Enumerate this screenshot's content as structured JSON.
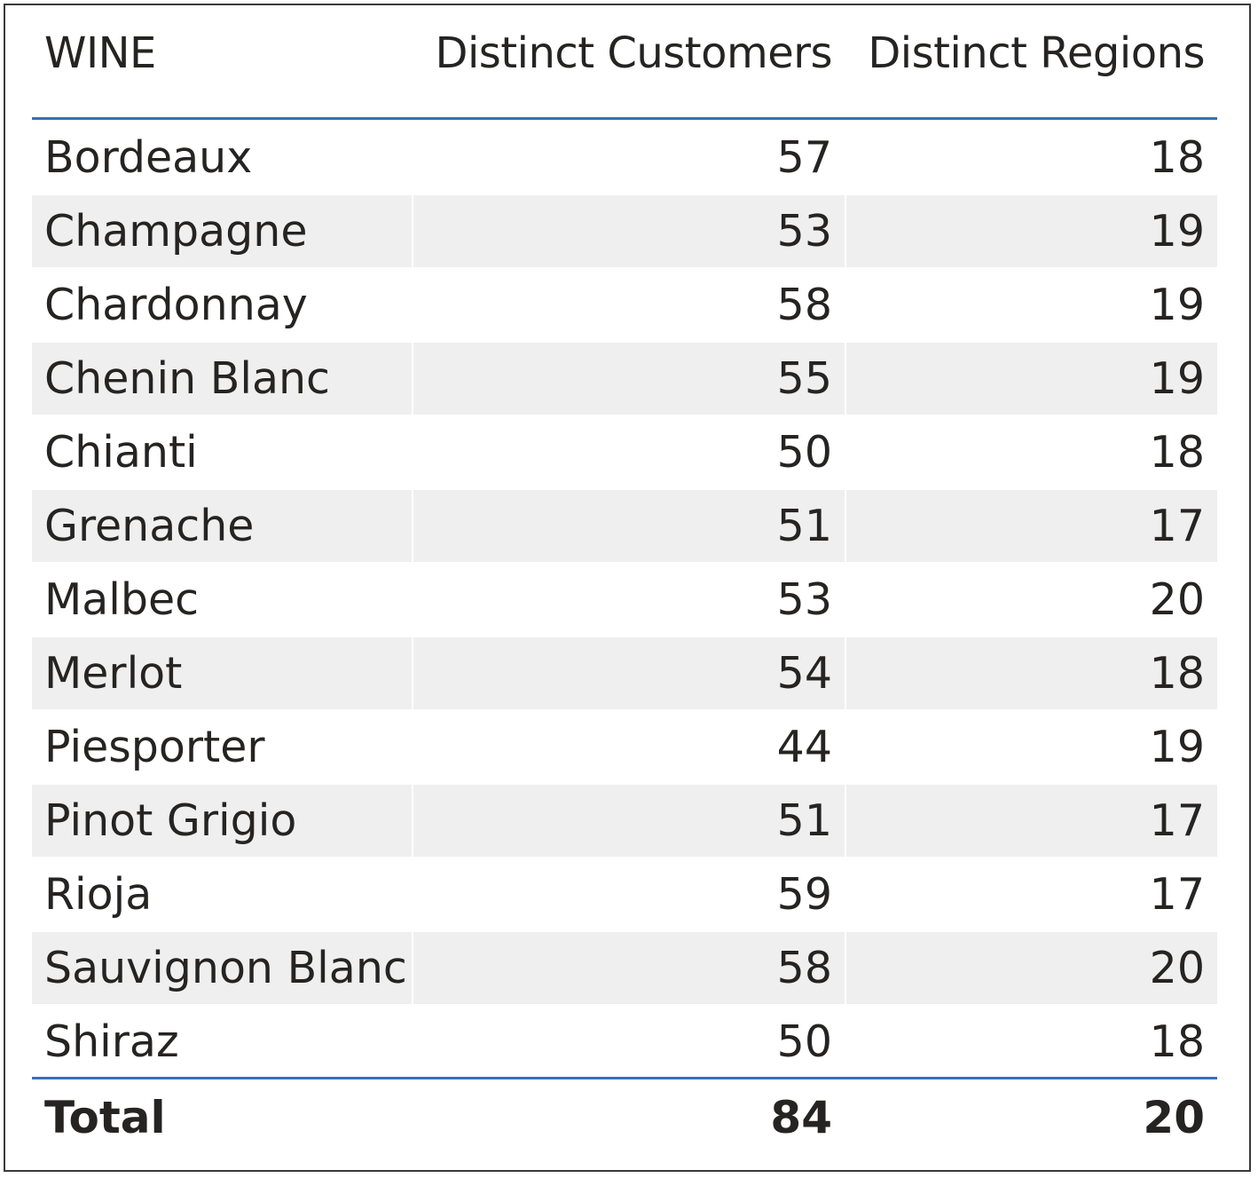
{
  "table": {
    "columns": [
      "WINE",
      "Distinct Customers",
      "Distinct Regions"
    ],
    "rows": [
      {
        "wine": "Bordeaux",
        "customers": "57",
        "regions": "18"
      },
      {
        "wine": "Champagne",
        "customers": "53",
        "regions": "19"
      },
      {
        "wine": "Chardonnay",
        "customers": "58",
        "regions": "19"
      },
      {
        "wine": "Chenin Blanc",
        "customers": "55",
        "regions": "19"
      },
      {
        "wine": "Chianti",
        "customers": "50",
        "regions": "18"
      },
      {
        "wine": "Grenache",
        "customers": "51",
        "regions": "17"
      },
      {
        "wine": "Malbec",
        "customers": "53",
        "regions": "20"
      },
      {
        "wine": "Merlot",
        "customers": "54",
        "regions": "18"
      },
      {
        "wine": "Piesporter",
        "customers": "44",
        "regions": "19"
      },
      {
        "wine": "Pinot Grigio",
        "customers": "51",
        "regions": "17"
      },
      {
        "wine": "Rioja",
        "customers": "59",
        "regions": "17"
      },
      {
        "wine": "Sauvignon Blanc",
        "customers": "58",
        "regions": "20"
      },
      {
        "wine": "Shiraz",
        "customers": "50",
        "regions": "18"
      }
    ],
    "total": {
      "label": "Total",
      "customers": "84",
      "regions": "20"
    }
  },
  "colors": {
    "accent_line": "#3a6fb5",
    "alt_row": "#efefef",
    "text": "#252423"
  }
}
